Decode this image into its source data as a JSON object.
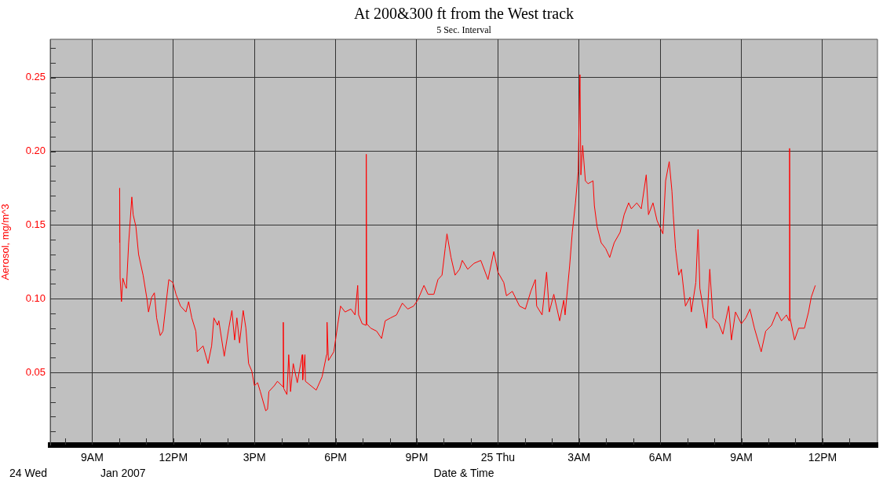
{
  "chart_data": {
    "type": "line",
    "title": "At 200&300 ft from the West track",
    "subtitle": "5 Sec. Interval",
    "xlabel": "Date & Time",
    "ylabel": "Aerosol, mg/m^3",
    "annotations": [
      "24 Wed",
      "Jan 2007"
    ],
    "grid": true,
    "xlim": [
      "2007-01-24T07:27",
      "2007-01-25T14:02"
    ],
    "xticks": [
      {
        "value": "2007-01-24T08:00",
        "label": null
      },
      {
        "value": "2007-01-24T09:00",
        "label": "9AM"
      },
      {
        "value": "2007-01-24T10:00",
        "label": null
      },
      {
        "value": "2007-01-24T11:00",
        "label": null
      },
      {
        "value": "2007-01-24T12:00",
        "label": "12PM"
      },
      {
        "value": "2007-01-24T13:00",
        "label": null
      },
      {
        "value": "2007-01-24T14:00",
        "label": null
      },
      {
        "value": "2007-01-24T15:00",
        "label": "3PM"
      },
      {
        "value": "2007-01-24T16:00",
        "label": null
      },
      {
        "value": "2007-01-24T17:00",
        "label": null
      },
      {
        "value": "2007-01-24T18:00",
        "label": "6PM"
      },
      {
        "value": "2007-01-24T19:00",
        "label": null
      },
      {
        "value": "2007-01-24T20:00",
        "label": null
      },
      {
        "value": "2007-01-24T21:00",
        "label": "9PM"
      },
      {
        "value": "2007-01-24T22:00",
        "label": null
      },
      {
        "value": "2007-01-24T23:00",
        "label": null
      },
      {
        "value": "2007-01-25T00:00",
        "label": "25 Thu"
      },
      {
        "value": "2007-01-25T01:00",
        "label": null
      },
      {
        "value": "2007-01-25T02:00",
        "label": null
      },
      {
        "value": "2007-01-25T03:00",
        "label": "3AM"
      },
      {
        "value": "2007-01-25T04:00",
        "label": null
      },
      {
        "value": "2007-01-25T05:00",
        "label": null
      },
      {
        "value": "2007-01-25T06:00",
        "label": "6AM"
      },
      {
        "value": "2007-01-25T07:00",
        "label": null
      },
      {
        "value": "2007-01-25T08:00",
        "label": null
      },
      {
        "value": "2007-01-25T09:00",
        "label": "9AM"
      },
      {
        "value": "2007-01-25T10:00",
        "label": null
      },
      {
        "value": "2007-01-25T11:00",
        "label": null
      },
      {
        "value": "2007-01-25T12:00",
        "label": "12PM"
      },
      {
        "value": "2007-01-25T13:00",
        "label": null
      }
    ],
    "ylim": [
      0.001,
      0.276
    ],
    "yticks": [
      {
        "value": 0.01,
        "label": null
      },
      {
        "value": 0.02,
        "label": null
      },
      {
        "value": 0.03,
        "label": null
      },
      {
        "value": 0.04,
        "label": null
      },
      {
        "value": 0.05,
        "label": "0.05"
      },
      {
        "value": 0.06,
        "label": null
      },
      {
        "value": 0.07,
        "label": null
      },
      {
        "value": 0.08,
        "label": null
      },
      {
        "value": 0.09,
        "label": null
      },
      {
        "value": 0.1,
        "label": "0.10"
      },
      {
        "value": 0.11,
        "label": null
      },
      {
        "value": 0.12,
        "label": null
      },
      {
        "value": 0.13,
        "label": null
      },
      {
        "value": 0.14,
        "label": null
      },
      {
        "value": 0.15,
        "label": "0.15"
      },
      {
        "value": 0.16,
        "label": null
      },
      {
        "value": 0.17,
        "label": null
      },
      {
        "value": 0.18,
        "label": null
      },
      {
        "value": 0.19,
        "label": null
      },
      {
        "value": 0.2,
        "label": "0.20"
      },
      {
        "value": 0.21,
        "label": null
      },
      {
        "value": 0.22,
        "label": null
      },
      {
        "value": 0.23,
        "label": null
      },
      {
        "value": 0.24,
        "label": null
      },
      {
        "value": 0.25,
        "label": "0.25"
      },
      {
        "value": 0.26,
        "label": null
      },
      {
        "value": 0.27,
        "label": null
      }
    ],
    "series": [
      {
        "color": "#ff0000",
        "x": [
          "2007-01-24T10:01",
          "2007-01-24T10:01",
          "2007-01-24T10:02",
          "2007-01-24T10:05",
          "2007-01-24T10:08",
          "2007-01-24T10:13",
          "2007-01-24T10:16",
          "2007-01-24T10:21",
          "2007-01-24T10:28",
          "2007-01-24T10:31",
          "2007-01-24T10:37",
          "2007-01-24T10:43",
          "2007-01-24T10:53",
          "2007-01-24T11:02",
          "2007-01-24T11:05",
          "2007-01-24T11:12",
          "2007-01-24T11:18",
          "2007-01-24T11:23",
          "2007-01-24T11:31",
          "2007-01-24T11:37",
          "2007-01-24T11:44",
          "2007-01-24T11:50",
          "2007-01-24T11:59",
          "2007-01-24T12:06",
          "2007-01-24T12:16",
          "2007-01-24T12:28",
          "2007-01-24T12:34",
          "2007-01-24T12:41",
          "2007-01-24T12:50",
          "2007-01-24T12:53",
          "2007-01-24T13:06",
          "2007-01-24T13:17",
          "2007-01-24T13:25",
          "2007-01-24T13:30",
          "2007-01-24T13:38",
          "2007-01-24T13:41",
          "2007-01-24T13:53",
          "2007-01-24T14:03",
          "2007-01-24T14:10",
          "2007-01-24T14:16",
          "2007-01-24T14:21",
          "2007-01-24T14:27",
          "2007-01-24T14:35",
          "2007-01-24T14:41",
          "2007-01-24T14:47",
          "2007-01-24T14:54",
          "2007-01-24T15:00",
          "2007-01-24T15:07",
          "2007-01-24T15:13",
          "2007-01-24T15:25",
          "2007-01-24T15:29",
          "2007-01-24T15:32",
          "2007-01-24T15:44",
          "2007-01-24T15:51",
          "2007-01-24T16:04",
          "2007-01-24T16:04",
          "2007-01-24T16:05",
          "2007-01-24T16:12",
          "2007-01-24T16:16",
          "2007-01-24T16:20",
          "2007-01-24T16:26",
          "2007-01-24T16:35",
          "2007-01-24T16:46",
          "2007-01-24T16:47",
          "2007-01-24T16:52",
          "2007-01-24T16:53",
          "2007-01-24T17:05",
          "2007-01-24T17:17",
          "2007-01-24T17:30",
          "2007-01-24T17:40",
          "2007-01-24T17:41",
          "2007-01-24T17:44",
          "2007-01-24T17:56",
          "2007-01-24T18:05",
          "2007-01-24T18:11",
          "2007-01-24T18:21",
          "2007-01-24T18:34",
          "2007-01-24T18:43",
          "2007-01-24T18:49",
          "2007-01-24T18:51",
          "2007-01-24T18:59",
          "2007-01-24T19:07",
          "2007-01-24T19:08",
          "2007-01-24T19:09",
          "2007-01-24T19:18",
          "2007-01-24T19:31",
          "2007-01-24T19:42",
          "2007-01-24T19:50",
          "2007-01-24T20:02",
          "2007-01-24T20:15",
          "2007-01-24T20:28",
          "2007-01-24T20:40",
          "2007-01-24T20:53",
          "2007-01-24T21:02",
          "2007-01-24T21:16",
          "2007-01-24T21:25",
          "2007-01-24T21:38",
          "2007-01-24T21:47",
          "2007-01-24T21:56",
          "2007-01-24T22:03",
          "2007-01-24T22:07",
          "2007-01-24T22:16",
          "2007-01-24T22:25",
          "2007-01-24T22:35",
          "2007-01-24T22:41",
          "2007-01-24T22:53",
          "2007-01-24T23:07",
          "2007-01-24T23:22",
          "2007-01-24T23:38",
          "2007-01-24T23:51",
          "2007-01-25T00:00",
          "2007-01-25T00:13",
          "2007-01-25T00:19",
          "2007-01-25T00:32",
          "2007-01-25T00:48",
          "2007-01-25T01:01",
          "2007-01-25T01:13",
          "2007-01-25T01:23",
          "2007-01-25T01:26",
          "2007-01-25T01:38",
          "2007-01-25T01:48",
          "2007-01-25T01:54",
          "2007-01-25T02:04",
          "2007-01-25T02:17",
          "2007-01-25T02:26",
          "2007-01-25T02:29",
          "2007-01-25T02:39",
          "2007-01-25T02:45",
          "2007-01-25T02:52",
          "2007-01-25T02:58",
          "2007-01-25T03:02",
          "2007-01-25T03:04",
          "2007-01-25T03:08",
          "2007-01-25T03:14",
          "2007-01-25T03:20",
          "2007-01-25T03:31",
          "2007-01-25T03:34",
          "2007-01-25T03:40",
          "2007-01-25T03:49",
          "2007-01-25T03:59",
          "2007-01-25T04:08",
          "2007-01-25T04:18",
          "2007-01-25T04:31",
          "2007-01-25T04:40",
          "2007-01-25T04:50",
          "2007-01-25T04:56",
          "2007-01-25T05:08",
          "2007-01-25T05:18",
          "2007-01-25T05:29",
          "2007-01-25T05:34",
          "2007-01-25T05:44",
          "2007-01-25T05:53",
          "2007-01-25T06:06",
          "2007-01-25T06:12",
          "2007-01-25T06:20",
          "2007-01-25T06:26",
          "2007-01-25T06:29",
          "2007-01-25T06:34",
          "2007-01-25T06:41",
          "2007-01-25T06:47",
          "2007-01-25T06:56",
          "2007-01-25T07:06",
          "2007-01-25T07:09",
          "2007-01-25T07:19",
          "2007-01-25T07:24",
          "2007-01-25T07:28",
          "2007-01-25T07:38",
          "2007-01-25T07:43",
          "2007-01-25T07:50",
          "2007-01-25T07:57",
          "2007-01-25T08:10",
          "2007-01-25T08:19",
          "2007-01-25T08:32",
          "2007-01-25T08:38",
          "2007-01-25T08:47",
          "2007-01-25T09:00",
          "2007-01-25T09:10",
          "2007-01-25T09:19",
          "2007-01-25T09:29",
          "2007-01-25T09:44",
          "2007-01-25T09:54",
          "2007-01-25T10:07",
          "2007-01-25T10:19",
          "2007-01-25T10:29",
          "2007-01-25T10:40",
          "2007-01-25T10:46",
          "2007-01-25T10:47",
          "2007-01-25T10:48",
          "2007-01-25T10:58",
          "2007-01-25T11:07",
          "2007-01-25T11:20",
          "2007-01-25T11:29",
          "2007-01-25T11:35",
          "2007-01-25T11:44"
        ],
        "values": [
          0.138,
          0.175,
          0.114,
          0.098,
          0.114,
          0.109,
          0.107,
          0.138,
          0.169,
          0.157,
          0.149,
          0.13,
          0.116,
          0.099,
          0.091,
          0.101,
          0.104,
          0.087,
          0.075,
          0.078,
          0.097,
          0.113,
          0.111,
          0.103,
          0.095,
          0.091,
          0.098,
          0.087,
          0.078,
          0.064,
          0.068,
          0.056,
          0.068,
          0.087,
          0.082,
          0.085,
          0.061,
          0.08,
          0.092,
          0.072,
          0.087,
          0.07,
          0.092,
          0.08,
          0.056,
          0.051,
          0.041,
          0.043,
          0.037,
          0.024,
          0.025,
          0.037,
          0.041,
          0.044,
          0.04,
          0.084,
          0.039,
          0.035,
          0.062,
          0.037,
          0.056,
          0.043,
          0.062,
          0.045,
          0.062,
          0.044,
          0.041,
          0.038,
          0.047,
          0.062,
          0.084,
          0.058,
          0.064,
          0.083,
          0.095,
          0.091,
          0.093,
          0.089,
          0.109,
          0.089,
          0.083,
          0.082,
          0.198,
          0.083,
          0.08,
          0.078,
          0.073,
          0.085,
          0.087,
          0.089,
          0.097,
          0.093,
          0.095,
          0.099,
          0.109,
          0.103,
          0.103,
          0.113,
          0.116,
          0.134,
          0.144,
          0.128,
          0.116,
          0.12,
          0.126,
          0.12,
          0.124,
          0.126,
          0.113,
          0.132,
          0.118,
          0.111,
          0.102,
          0.105,
          0.095,
          0.093,
          0.105,
          0.113,
          0.095,
          0.089,
          0.118,
          0.091,
          0.103,
          0.085,
          0.099,
          0.089,
          0.122,
          0.145,
          0.165,
          0.186,
          0.252,
          0.184,
          0.204,
          0.18,
          0.178,
          0.18,
          0.163,
          0.149,
          0.138,
          0.134,
          0.128,
          0.138,
          0.145,
          0.157,
          0.165,
          0.161,
          0.165,
          0.161,
          0.184,
          0.157,
          0.165,
          0.153,
          0.144,
          0.18,
          0.193,
          0.173,
          0.157,
          0.134,
          0.116,
          0.12,
          0.095,
          0.101,
          0.091,
          0.111,
          0.147,
          0.107,
          0.089,
          0.08,
          0.12,
          0.087,
          0.083,
          0.076,
          0.095,
          0.072,
          0.091,
          0.083,
          0.087,
          0.093,
          0.08,
          0.064,
          0.078,
          0.082,
          0.091,
          0.085,
          0.089,
          0.085,
          0.202,
          0.087,
          0.072,
          0.08,
          0.08,
          0.091,
          0.101,
          0.109
        ]
      }
    ]
  }
}
